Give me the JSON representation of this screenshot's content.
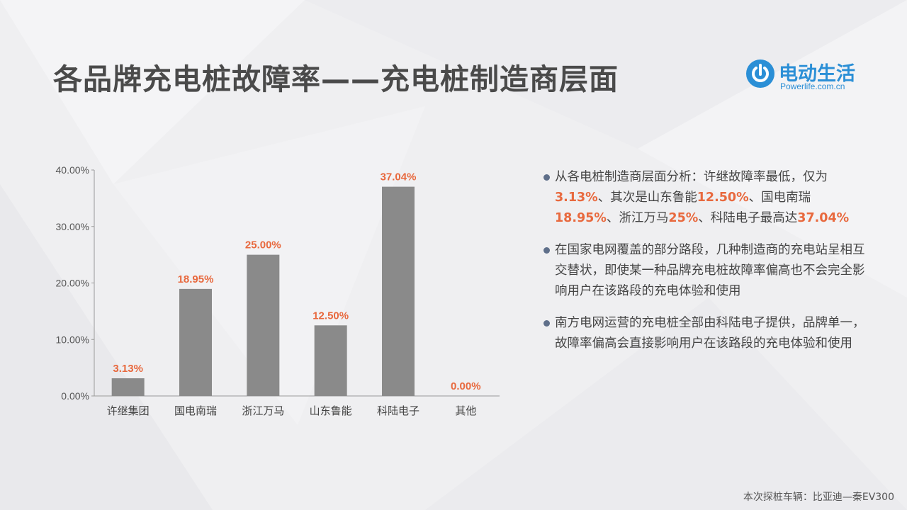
{
  "title": "各品牌充电桩故障率——充电桩制造商层面",
  "logo": {
    "name": "电动生活",
    "url": "Powerlife.com.cn",
    "icon": "power-icon"
  },
  "colors": {
    "bar": "#8a8a8a",
    "data_label": "#e8693e",
    "logo": "#2b8fd6",
    "axis_text": "#555555"
  },
  "chart_data": {
    "type": "bar",
    "categories": [
      "许继集团",
      "国电南瑞",
      "浙江万马",
      "山东鲁能",
      "科陆电子",
      "其他"
    ],
    "values": [
      3.13,
      18.95,
      25.0,
      12.5,
      37.04,
      0.0
    ],
    "data_labels": [
      "3.13%",
      "18.95%",
      "25.00%",
      "12.50%",
      "37.04%",
      "0.00%"
    ],
    "y_ticks": [
      "0.00%",
      "10.00%",
      "20.00%",
      "30.00%",
      "40.00%"
    ],
    "ylim": [
      0,
      40
    ],
    "grid": false,
    "legend": "none"
  },
  "bullets": [
    [
      {
        "text": "从各电桩制造商层面分析：许继故障率最低，仅为"
      },
      {
        "text": "3.13%",
        "hl": true
      },
      {
        "text": "、其次是山东鲁能"
      },
      {
        "text": "12.50%",
        "hl": true
      },
      {
        "text": "、国电南瑞"
      },
      {
        "text": "18.95%",
        "hl": true
      },
      {
        "text": "、浙江万马"
      },
      {
        "text": "25%",
        "hl": true
      },
      {
        "text": "、科陆电子最高达"
      },
      {
        "text": "37.04%",
        "hl": true
      }
    ],
    [
      {
        "text": "在国家电网覆盖的部分路段，几种制造商的充电站呈相互交替状，即使某一种品牌充电桩故障率偏高也不会完全影响用户在该路段的充电体验和使用"
      }
    ],
    [
      {
        "text": "南方电网运营的充电桩全部由科陆电子提供，品牌单一，故障率偏高会直接影响用户在该路段的充电体验和使用"
      }
    ]
  ],
  "footer": "本次探桩车辆：比亚迪—秦EV300"
}
